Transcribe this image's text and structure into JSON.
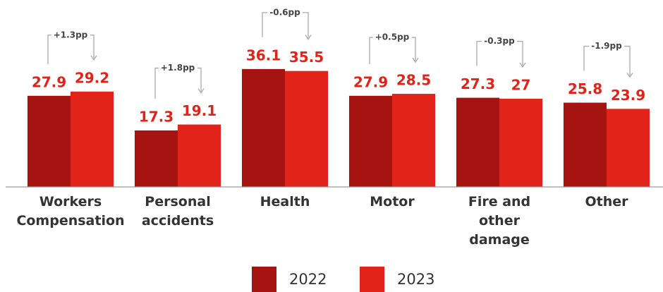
{
  "chart_data": {
    "type": "bar",
    "categories": [
      "Workers Compensation",
      "Personal accidents",
      "Health",
      "Motor",
      "Fire and other damage",
      "Other"
    ],
    "series": [
      {
        "name": "2022",
        "color": "#a51410",
        "values": [
          27.9,
          17.3,
          36.1,
          27.9,
          27.3,
          25.8
        ]
      },
      {
        "name": "2023",
        "color": "#e2231a",
        "values": [
          29.2,
          19.1,
          35.5,
          28.5,
          27.0,
          23.9
        ]
      }
    ],
    "value_labels_color": "#e2231a",
    "annotations": [
      "+1.3pp",
      "+1.8pp",
      "-0.6pp",
      "+0.5pp",
      "-0.3pp",
      "-1.9pp"
    ]
  }
}
